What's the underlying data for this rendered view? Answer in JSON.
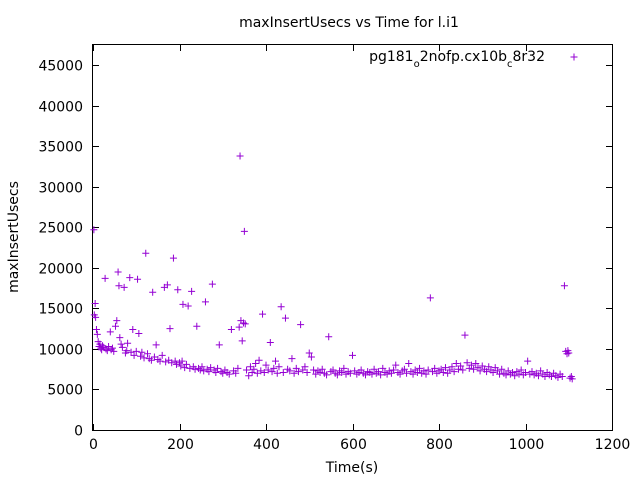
{
  "chart_data": {
    "type": "scatter",
    "title": "maxInsertUsecs vs Time for l.i1",
    "xlabel": "Time(s)",
    "ylabel": "maxInsertUsecs",
    "xlim": [
      0,
      1200
    ],
    "ylim": [
      0,
      47500
    ],
    "x_ticks": [
      "0",
      "200",
      "400",
      "600",
      "800",
      "1000",
      "1200"
    ],
    "y_ticks": [
      "0",
      "5000",
      "10000",
      "15000",
      "20000",
      "25000",
      "30000",
      "35000",
      "40000",
      "45000"
    ],
    "grid": false,
    "legend_position": "top-right",
    "series": [
      {
        "name": "pg181_o2nofp.cx10b_c8r32",
        "legend_label": {
          "parts": [
            {
              "text": "pg181",
              "sub": false
            },
            {
              "text": "o",
              "sub": true
            },
            {
              "text": "2nofp.cx10b",
              "sub": false
            },
            {
              "text": "c",
              "sub": true
            },
            {
              "text": "8r32",
              "sub": false
            }
          ]
        },
        "color": "#9400d3",
        "marker": "+",
        "points": [
          [
            2,
            24700
          ],
          [
            3,
            14200
          ],
          [
            5,
            15600
          ],
          [
            6,
            13900
          ],
          [
            8,
            12400
          ],
          [
            10,
            11800
          ],
          [
            12,
            10900
          ],
          [
            14,
            10300
          ],
          [
            16,
            10600
          ],
          [
            18,
            10100
          ],
          [
            20,
            9900
          ],
          [
            22,
            10400
          ],
          [
            25,
            10200
          ],
          [
            28,
            18700
          ],
          [
            30,
            10000
          ],
          [
            33,
            9800
          ],
          [
            36,
            10300
          ],
          [
            40,
            12100
          ],
          [
            42,
            9900
          ],
          [
            45,
            10100
          ],
          [
            48,
            9700
          ],
          [
            52,
            12800
          ],
          [
            55,
            13500
          ],
          [
            58,
            19500
          ],
          [
            60,
            17800
          ],
          [
            62,
            11400
          ],
          [
            65,
            10600
          ],
          [
            68,
            10200
          ],
          [
            72,
            17600
          ],
          [
            75,
            9500
          ],
          [
            78,
            9800
          ],
          [
            80,
            10700
          ],
          [
            85,
            18800
          ],
          [
            88,
            9600
          ],
          [
            92,
            12400
          ],
          [
            95,
            9200
          ],
          [
            100,
            9700
          ],
          [
            103,
            18600
          ],
          [
            106,
            11900
          ],
          [
            110,
            9100
          ],
          [
            113,
            9600
          ],
          [
            118,
            8900
          ],
          [
            122,
            21800
          ],
          [
            126,
            9400
          ],
          [
            130,
            8800
          ],
          [
            135,
            8600
          ],
          [
            138,
            17000
          ],
          [
            142,
            9000
          ],
          [
            146,
            10500
          ],
          [
            150,
            8700
          ],
          [
            155,
            8500
          ],
          [
            160,
            9200
          ],
          [
            165,
            17600
          ],
          [
            168,
            8400
          ],
          [
            172,
            17900
          ],
          [
            175,
            8600
          ],
          [
            178,
            12500
          ],
          [
            182,
            8300
          ],
          [
            186,
            21200
          ],
          [
            190,
            8500
          ],
          [
            193,
            8100
          ],
          [
            196,
            17300
          ],
          [
            200,
            8300
          ],
          [
            203,
            7900
          ],
          [
            206,
            8500
          ],
          [
            208,
            15500
          ],
          [
            212,
            7700
          ],
          [
            216,
            8100
          ],
          [
            220,
            15300
          ],
          [
            224,
            7600
          ],
          [
            228,
            17100
          ],
          [
            232,
            7800
          ],
          [
            236,
            7500
          ],
          [
            240,
            12800
          ],
          [
            244,
            7600
          ],
          [
            248,
            7400
          ],
          [
            252,
            7800
          ],
          [
            256,
            7300
          ],
          [
            260,
            15800
          ],
          [
            264,
            7500
          ],
          [
            268,
            7200
          ],
          [
            272,
            7700
          ],
          [
            276,
            18000
          ],
          [
            280,
            7400
          ],
          [
            284,
            7100
          ],
          [
            288,
            7600
          ],
          [
            292,
            10500
          ],
          [
            296,
            7200
          ],
          [
            300,
            7000
          ],
          [
            305,
            7400
          ],
          [
            310,
            7100
          ],
          [
            315,
            6900
          ],
          [
            320,
            12400
          ],
          [
            325,
            7300
          ],
          [
            330,
            7000
          ],
          [
            335,
            7600
          ],
          [
            338,
            12700
          ],
          [
            340,
            33800
          ],
          [
            342,
            13500
          ],
          [
            345,
            11000
          ],
          [
            348,
            13200
          ],
          [
            350,
            24500
          ],
          [
            352,
            13100
          ],
          [
            355,
            7400
          ],
          [
            360,
            6700
          ],
          [
            364,
            7800
          ],
          [
            368,
            7100
          ],
          [
            372,
            7500
          ],
          [
            376,
            8200
          ],
          [
            380,
            7000
          ],
          [
            384,
            8600
          ],
          [
            388,
            7300
          ],
          [
            392,
            14300
          ],
          [
            396,
            7100
          ],
          [
            400,
            8000
          ],
          [
            405,
            7400
          ],
          [
            410,
            10800
          ],
          [
            414,
            7200
          ],
          [
            418,
            7600
          ],
          [
            422,
            8500
          ],
          [
            426,
            7000
          ],
          [
            430,
            7800
          ],
          [
            435,
            15200
          ],
          [
            440,
            7100
          ],
          [
            445,
            13800
          ],
          [
            450,
            7500
          ],
          [
            455,
            7300
          ],
          [
            460,
            8800
          ],
          [
            465,
            7000
          ],
          [
            470,
            7600
          ],
          [
            475,
            7200
          ],
          [
            480,
            13000
          ],
          [
            485,
            7400
          ],
          [
            490,
            7800
          ],
          [
            495,
            7100
          ],
          [
            500,
            9500
          ],
          [
            505,
            9000
          ],
          [
            510,
            7400
          ],
          [
            515,
            6900
          ],
          [
            520,
            7300
          ],
          [
            525,
            7100
          ],
          [
            530,
            7500
          ],
          [
            535,
            7000
          ],
          [
            540,
            6800
          ],
          [
            545,
            11500
          ],
          [
            550,
            7200
          ],
          [
            555,
            7400
          ],
          [
            560,
            7000
          ],
          [
            565,
            6800
          ],
          [
            570,
            7300
          ],
          [
            575,
            7100
          ],
          [
            580,
            7600
          ],
          [
            585,
            6900
          ],
          [
            590,
            7200
          ],
          [
            595,
            7000
          ],
          [
            600,
            9200
          ],
          [
            605,
            7300
          ],
          [
            610,
            6900
          ],
          [
            615,
            7100
          ],
          [
            620,
            7400
          ],
          [
            625,
            7000
          ],
          [
            630,
            6800
          ],
          [
            635,
            7200
          ],
          [
            640,
            7100
          ],
          [
            645,
            6900
          ],
          [
            650,
            7500
          ],
          [
            655,
            7000
          ],
          [
            660,
            7200
          ],
          [
            665,
            6800
          ],
          [
            670,
            7600
          ],
          [
            675,
            7100
          ],
          [
            680,
            6900
          ],
          [
            685,
            7300
          ],
          [
            690,
            7000
          ],
          [
            695,
            7400
          ],
          [
            700,
            8000
          ],
          [
            705,
            7100
          ],
          [
            710,
            6900
          ],
          [
            715,
            7300
          ],
          [
            720,
            7500
          ],
          [
            725,
            7000
          ],
          [
            730,
            8200
          ],
          [
            735,
            7200
          ],
          [
            740,
            6900
          ],
          [
            745,
            7400
          ],
          [
            750,
            7100
          ],
          [
            755,
            7600
          ],
          [
            760,
            7000
          ],
          [
            765,
            7300
          ],
          [
            770,
            6900
          ],
          [
            775,
            7400
          ],
          [
            780,
            16300
          ],
          [
            785,
            7200
          ],
          [
            790,
            7600
          ],
          [
            795,
            7000
          ],
          [
            800,
            7300
          ],
          [
            805,
            7500
          ],
          [
            810,
            7100
          ],
          [
            815,
            7700
          ],
          [
            820,
            7000
          ],
          [
            825,
            7400
          ],
          [
            830,
            7800
          ],
          [
            835,
            7200
          ],
          [
            840,
            8200
          ],
          [
            845,
            7500
          ],
          [
            850,
            7900
          ],
          [
            855,
            7400
          ],
          [
            860,
            11700
          ],
          [
            865,
            8300
          ],
          [
            870,
            7600
          ],
          [
            875,
            8000
          ],
          [
            880,
            7500
          ],
          [
            885,
            8200
          ],
          [
            890,
            7700
          ],
          [
            895,
            7300
          ],
          [
            900,
            7900
          ],
          [
            905,
            7500
          ],
          [
            910,
            7200
          ],
          [
            915,
            7800
          ],
          [
            920,
            7400
          ],
          [
            925,
            7100
          ],
          [
            930,
            7700
          ],
          [
            935,
            7300
          ],
          [
            940,
            6900
          ],
          [
            945,
            7500
          ],
          [
            950,
            7000
          ],
          [
            955,
            6800
          ],
          [
            960,
            7300
          ],
          [
            965,
            6900
          ],
          [
            970,
            7100
          ],
          [
            975,
            6700
          ],
          [
            980,
            7200
          ],
          [
            985,
            6900
          ],
          [
            990,
            7400
          ],
          [
            995,
            6800
          ],
          [
            1000,
            7100
          ],
          [
            1005,
            8500
          ],
          [
            1010,
            6900
          ],
          [
            1015,
            7200
          ],
          [
            1020,
            6800
          ],
          [
            1025,
            7000
          ],
          [
            1030,
            6700
          ],
          [
            1035,
            7300
          ],
          [
            1040,
            6900
          ],
          [
            1045,
            6600
          ],
          [
            1050,
            7100
          ],
          [
            1055,
            6800
          ],
          [
            1060,
            6600
          ],
          [
            1065,
            7000
          ],
          [
            1070,
            6700
          ],
          [
            1075,
            6500
          ],
          [
            1080,
            6900
          ],
          [
            1085,
            6600
          ],
          [
            1090,
            17800
          ],
          [
            1093,
            9700
          ],
          [
            1096,
            9400
          ],
          [
            1098,
            9800
          ],
          [
            1100,
            9500
          ],
          [
            1103,
            6400
          ],
          [
            1106,
            6600
          ],
          [
            1108,
            6300
          ]
        ]
      }
    ]
  }
}
